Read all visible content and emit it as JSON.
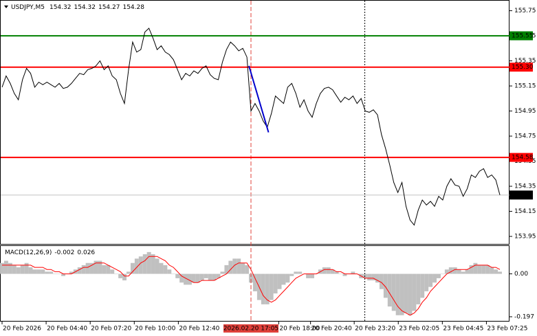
{
  "chart_data": [
    {
      "type": "line",
      "title": "USDJPY,M5",
      "quote": [
        154.32,
        154.32,
        154.27,
        154.28
      ],
      "color": "#000000",
      "values": [
        155.14,
        155.23,
        155.17,
        155.09,
        155.04,
        155.2,
        155.29,
        155.25,
        155.14,
        155.18,
        155.16,
        155.18,
        155.16,
        155.14,
        155.17,
        155.13,
        155.14,
        155.17,
        155.21,
        155.25,
        155.24,
        155.28,
        155.29,
        155.31,
        155.35,
        155.28,
        155.31,
        155.23,
        155.2,
        155.09,
        155.01,
        155.28,
        155.5,
        155.42,
        155.44,
        155.58,
        155.61,
        155.53,
        155.44,
        155.47,
        155.42,
        155.4,
        155.36,
        155.28,
        155.2,
        155.25,
        155.23,
        155.27,
        155.25,
        155.29,
        155.31,
        155.24,
        155.21,
        155.2,
        155.34,
        155.44,
        155.5,
        155.47,
        155.43,
        155.45,
        155.38,
        154.95,
        155.01,
        154.95,
        154.87,
        154.82,
        154.93,
        155.07,
        155.04,
        155.01,
        155.14,
        155.17,
        155.09,
        154.98,
        155.04,
        154.95,
        154.9,
        155.01,
        155.09,
        155.13,
        155.14,
        155.12,
        155.07,
        155.02,
        155.06,
        155.04,
        155.07,
        155.01,
        155.05,
        154.95,
        154.94,
        154.96,
        154.92,
        154.76,
        154.65,
        154.52,
        154.38,
        154.3,
        154.38,
        154.19,
        154.08,
        154.04,
        154.16,
        154.24,
        154.2,
        154.23,
        154.19,
        154.27,
        154.24,
        154.35,
        154.41,
        154.36,
        154.35,
        154.27,
        154.33,
        154.44,
        154.42,
        154.47,
        154.49,
        154.42,
        154.44,
        154.4,
        154.28
      ],
      "xlim": [
        0,
        122
      ],
      "ylim": [
        153.89,
        155.83
      ],
      "yticks": [
        155.75,
        155.55,
        155.35,
        155.15,
        154.95,
        154.75,
        154.55,
        154.35,
        154.15,
        153.95
      ],
      "levels": [
        {
          "value": 155.55,
          "label": "155.55",
          "color": "#008000"
        },
        {
          "value": 155.3,
          "label": "155.30",
          "color": "#ff0000"
        },
        {
          "value": 154.58,
          "label": "154.58",
          "color": "#ff0000"
        }
      ],
      "last_price": {
        "value": 154.28,
        "label": "154.28"
      },
      "trend_line": {
        "x": [
          60.5,
          65.3
        ],
        "values": [
          155.31,
          154.78
        ],
        "color": "#0000cc"
      },
      "crosshair": {
        "x": 61,
        "label": "2026.02.20 17:05"
      },
      "separator_x": 88.9
    },
    {
      "type": "macd",
      "title": "MACD(12,26,9)",
      "readout": [
        -0.002,
        0.026
      ],
      "histogram": {
        "color": "#c0c0c0",
        "values": [
          0.05,
          0.06,
          0.05,
          0.04,
          0.03,
          0.04,
          0.05,
          0.03,
          0.02,
          0.02,
          0.02,
          0.01,
          0.01,
          0.0,
          0.0,
          -0.01,
          0.0,
          0.01,
          0.02,
          0.03,
          0.04,
          0.05,
          0.05,
          0.06,
          0.06,
          0.04,
          0.04,
          0.02,
          0.0,
          -0.02,
          -0.03,
          0.01,
          0.05,
          0.07,
          0.08,
          0.09,
          0.1,
          0.09,
          0.07,
          0.05,
          0.04,
          0.02,
          0.0,
          -0.02,
          -0.04,
          -0.05,
          -0.05,
          -0.04,
          -0.04,
          -0.03,
          -0.02,
          -0.03,
          -0.03,
          -0.02,
          0.01,
          0.04,
          0.06,
          0.07,
          0.07,
          0.05,
          0.04,
          -0.04,
          -0.08,
          -0.12,
          -0.14,
          -0.14,
          -0.12,
          -0.09,
          -0.07,
          -0.05,
          -0.04,
          -0.01,
          0.01,
          0.01,
          0.0,
          -0.02,
          -0.02,
          0.0,
          0.02,
          0.03,
          0.03,
          0.02,
          0.01,
          0.0,
          -0.01,
          0.0,
          0.01,
          0.0,
          -0.02,
          -0.02,
          -0.03,
          -0.03,
          -0.04,
          -0.07,
          -0.11,
          -0.15,
          -0.17,
          -0.19,
          -0.19,
          -0.18,
          -0.19,
          -0.17,
          -0.14,
          -0.11,
          -0.08,
          -0.06,
          -0.04,
          -0.02,
          0.0,
          0.02,
          0.03,
          0.03,
          0.02,
          0.01,
          0.02,
          0.04,
          0.05,
          0.04,
          0.04,
          0.04,
          0.03,
          0.02,
          0.01
        ]
      },
      "signal": {
        "color": "#ff0000",
        "values": [
          0.04,
          0.04,
          0.04,
          0.04,
          0.04,
          0.04,
          0.04,
          0.04,
          0.03,
          0.03,
          0.03,
          0.02,
          0.02,
          0.01,
          0.01,
          0.0,
          0.0,
          0.0,
          0.01,
          0.02,
          0.03,
          0.03,
          0.04,
          0.05,
          0.05,
          0.05,
          0.04,
          0.03,
          0.02,
          0.01,
          -0.01,
          -0.01,
          0.01,
          0.03,
          0.05,
          0.06,
          0.08,
          0.08,
          0.08,
          0.07,
          0.06,
          0.04,
          0.03,
          0.01,
          -0.01,
          -0.02,
          -0.03,
          -0.04,
          -0.04,
          -0.03,
          -0.03,
          -0.03,
          -0.03,
          -0.02,
          -0.01,
          0.0,
          0.02,
          0.04,
          0.05,
          0.05,
          0.05,
          0.02,
          -0.02,
          -0.06,
          -0.1,
          -0.12,
          -0.13,
          -0.12,
          -0.1,
          -0.08,
          -0.06,
          -0.04,
          -0.02,
          -0.01,
          0.0,
          0.0,
          0.0,
          0.0,
          0.01,
          0.02,
          0.02,
          0.02,
          0.01,
          0.01,
          0.0,
          0.0,
          0.0,
          0.0,
          -0.01,
          -0.02,
          -0.02,
          -0.02,
          -0.03,
          -0.04,
          -0.06,
          -0.09,
          -0.12,
          -0.15,
          -0.17,
          -0.18,
          -0.19,
          -0.18,
          -0.16,
          -0.13,
          -0.11,
          -0.08,
          -0.06,
          -0.04,
          -0.02,
          0.0,
          0.01,
          0.02,
          0.02,
          0.02,
          0.02,
          0.03,
          0.04,
          0.04,
          0.04,
          0.04,
          0.03,
          0.03,
          0.02
        ]
      },
      "xlim": [
        0,
        122
      ],
      "ylim": [
        -0.216,
        0.128
      ],
      "yticks": [
        {
          "value": 0,
          "label": "0.00"
        },
        -0.197
      ],
      "xticks": [
        {
          "value": 0,
          "label": "20 Feb 2026"
        },
        {
          "value": 10.8,
          "label": "20 Feb 04:40"
        },
        {
          "value": 21.6,
          "label": "20 Feb 07:20"
        },
        {
          "value": 32.4,
          "label": "20 Feb 10:00"
        },
        {
          "value": 43.2,
          "label": "20 Feb 12:40"
        },
        {
          "value": 67.8,
          "label": "20 Feb 18:00"
        },
        {
          "value": 75.6,
          "label": "20 Feb 20:40"
        },
        {
          "value": 86.3,
          "label": "20 Feb 23:20"
        },
        {
          "value": 97.1,
          "label": "23 Feb 02:05"
        },
        {
          "value": 107.9,
          "label": "23 Feb 04:45"
        },
        {
          "value": 118.7,
          "label": "23 Feb 07:25"
        }
      ]
    }
  ]
}
